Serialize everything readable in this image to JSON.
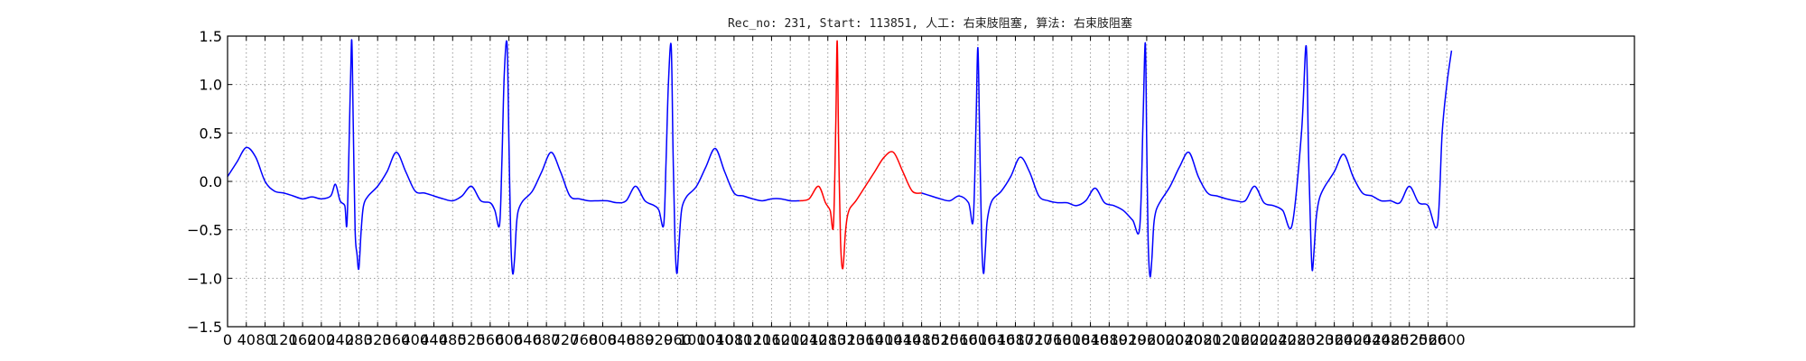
{
  "chart_data": {
    "type": "line",
    "title": "Rec_no: 231, Start: 113851, 人工: 右束肢阻塞, 算法: 右束肢阻塞",
    "xlabel": "",
    "ylabel": "",
    "xlim": [
      0,
      3000
    ],
    "ylim": [
      -1.5,
      1.5
    ],
    "grid": true,
    "x_step": 40,
    "x_tick_labels": [
      "0",
      "40",
      "80",
      "120",
      "160",
      "200",
      "240",
      "280",
      "320",
      "360",
      "400",
      "440",
      "480",
      "520",
      "560",
      "600",
      "640",
      "680",
      "720",
      "760",
      "800",
      "840",
      "880",
      "920",
      "960",
      "1000",
      "1040",
      "1080",
      "1120",
      "1160",
      "1200",
      "1240",
      "1280",
      "1320",
      "1360",
      "1400",
      "1440",
      "1480",
      "1520",
      "1560",
      "1600",
      "1640",
      "1680",
      "1720",
      "1760",
      "1800",
      "1840",
      "1880",
      "1920",
      "1960",
      "2000",
      "2040",
      "2080",
      "2120",
      "2160",
      "2200",
      "2240",
      "2280",
      "2320",
      "2360",
      "2400",
      "2440",
      "2480",
      "2520",
      "2560",
      "2600"
    ],
    "y_ticks": [
      -1.5,
      -1.0,
      -0.5,
      0.0,
      0.5,
      1.0,
      1.5
    ],
    "y_tick_labels": [
      "−1.5",
      "−1.0",
      "−0.5",
      "0.0",
      "0.5",
      "1.0",
      "1.5"
    ],
    "beat_peaks_x": [
      265,
      600,
      950,
      1300,
      1600,
      1960,
      2310
    ],
    "series": [
      {
        "color": "#0000ff",
        "x": [
          0,
          20,
          40,
          60,
          80,
          100,
          120,
          140,
          160,
          180,
          200,
          220,
          230,
          240,
          250,
          255,
          262,
          265,
          268,
          272,
          276,
          280,
          285,
          290,
          300,
          320,
          340,
          360,
          380,
          400,
          420,
          440,
          460,
          480,
          500,
          520,
          540,
          560,
          570,
          580,
          585,
          590,
          596,
          600,
          604,
          608,
          612,
          616,
          620,
          630,
          650,
          670,
          690,
          710,
          730,
          750,
          770,
          790,
          810,
          830,
          850,
          870,
          890,
          910,
          920,
          930,
          935,
          940,
          946,
          950,
          954,
          958,
          962,
          966,
          970,
          980,
          1000,
          1020,
          1040,
          1060,
          1080,
          1100,
          1120,
          1140,
          1160,
          1180,
          1200,
          1220
        ],
        "y": [
          0.05,
          0.2,
          0.35,
          0.25,
          0.0,
          -0.1,
          -0.12,
          -0.15,
          -0.18,
          -0.16,
          -0.18,
          -0.15,
          -0.03,
          -0.2,
          -0.25,
          -0.4,
          1.0,
          1.45,
          0.6,
          -0.5,
          -0.75,
          -0.9,
          -0.5,
          -0.25,
          -0.15,
          -0.05,
          0.1,
          0.3,
          0.1,
          -0.1,
          -0.12,
          -0.15,
          -0.18,
          -0.2,
          -0.15,
          -0.05,
          -0.2,
          -0.22,
          -0.3,
          -0.45,
          0.2,
          1.1,
          1.42,
          0.4,
          -0.6,
          -0.95,
          -0.8,
          -0.45,
          -0.3,
          -0.2,
          -0.1,
          0.1,
          0.3,
          0.1,
          -0.15,
          -0.18,
          -0.2,
          -0.2,
          -0.2,
          -0.22,
          -0.2,
          -0.05,
          -0.2,
          -0.25,
          -0.3,
          -0.45,
          0.2,
          1.0,
          1.4,
          0.3,
          -0.6,
          -0.95,
          -0.7,
          -0.4,
          -0.25,
          -0.15,
          -0.05,
          0.15,
          0.34,
          0.1,
          -0.12,
          -0.15,
          -0.18,
          -0.2,
          -0.18,
          -0.18,
          -0.2,
          -0.2
        ]
      },
      {
        "color": "#ff0000",
        "x": [
          1220,
          1240,
          1260,
          1275,
          1285,
          1292,
          1297,
          1300,
          1303,
          1307,
          1312,
          1318,
          1325,
          1340,
          1360,
          1380,
          1400,
          1420,
          1440,
          1460,
          1480
        ],
        "y": [
          -0.2,
          -0.18,
          -0.05,
          -0.22,
          -0.3,
          -0.45,
          0.6,
          1.45,
          0.4,
          -0.6,
          -0.9,
          -0.5,
          -0.3,
          -0.2,
          -0.05,
          0.1,
          0.25,
          0.3,
          0.1,
          -0.1,
          -0.12
        ]
      },
      {
        "color": "#0000ff",
        "x": [
          1480,
          1500,
          1520,
          1540,
          1560,
          1580,
          1590,
          1596,
          1600,
          1604,
          1608,
          1612,
          1616,
          1620,
          1630,
          1650,
          1670,
          1690,
          1710,
          1730,
          1750,
          1770,
          1790,
          1810,
          1830,
          1850,
          1870,
          1890,
          1910,
          1930,
          1945,
          1952,
          1957,
          1960,
          1963,
          1967,
          1971,
          1975,
          1980,
          1990,
          2010,
          2030,
          2050,
          2070,
          2090,
          2110,
          2130,
          2150,
          2170,
          2190,
          2210,
          2230,
          2250,
          2270,
          2290,
          2300,
          2305,
          2310,
          2313,
          2317,
          2321,
          2325,
          2330,
          2340,
          2360,
          2380,
          2400,
          2420,
          2440,
          2460,
          2480,
          2500,
          2520,
          2540,
          2560,
          2580,
          2590,
          2600,
          2610
        ],
        "y": [
          -0.12,
          -0.15,
          -0.18,
          -0.2,
          -0.15,
          -0.22,
          -0.4,
          0.6,
          1.38,
          0.4,
          -0.6,
          -0.95,
          -0.7,
          -0.4,
          -0.2,
          -0.1,
          0.05,
          0.25,
          0.1,
          -0.15,
          -0.2,
          -0.22,
          -0.22,
          -0.25,
          -0.2,
          -0.07,
          -0.22,
          -0.25,
          -0.3,
          -0.4,
          -0.48,
          0.6,
          1.43,
          0.4,
          -0.6,
          -0.98,
          -0.8,
          -0.45,
          -0.3,
          -0.2,
          -0.05,
          0.15,
          0.3,
          0.05,
          -0.12,
          -0.15,
          -0.18,
          -0.2,
          -0.2,
          -0.05,
          -0.22,
          -0.25,
          -0.3,
          -0.45,
          0.5,
          1.4,
          0.3,
          -0.6,
          -0.92,
          -0.7,
          -0.4,
          -0.25,
          -0.15,
          -0.05,
          0.1,
          0.28,
          0.05,
          -0.12,
          -0.15,
          -0.2,
          -0.2,
          -0.22,
          -0.05,
          -0.22,
          -0.25,
          -0.45,
          0.5,
          1.0,
          1.35
        ]
      }
    ]
  }
}
